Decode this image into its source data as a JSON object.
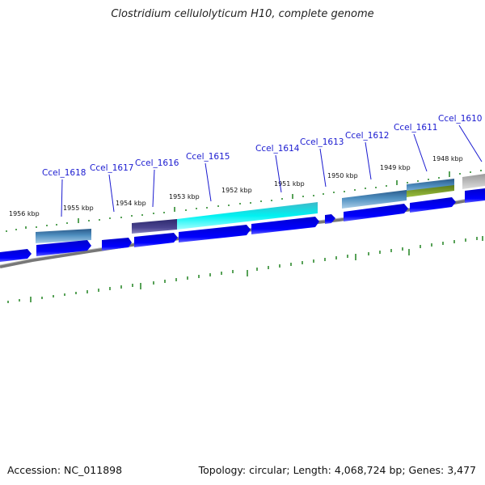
{
  "title": "Clostridium cellulolyticum H10, complete genome",
  "footer": {
    "accession": "Accession: NC_011898",
    "summary": "Topology: circular; Length: 4,068,724 bp; Genes: 3,477"
  },
  "colors": {
    "cds": "#0000ee",
    "backbone": "#888888",
    "tick": "#2e8b2e",
    "label": "#1a1ad0"
  },
  "kbp_labels": [
    "1956 kbp",
    "1955 kbp",
    "1954 kbp",
    "1953 kbp",
    "1952 kbp",
    "1951 kbp",
    "1950 kbp",
    "1949 kbp",
    "1948 kbp"
  ],
  "genes": [
    "Ccel_1618",
    "Ccel_1617",
    "Ccel_1616",
    "Ccel_1615",
    "Ccel_1614",
    "Ccel_1613",
    "Ccel_1612",
    "Ccel_1611",
    "Ccel_1610"
  ]
}
